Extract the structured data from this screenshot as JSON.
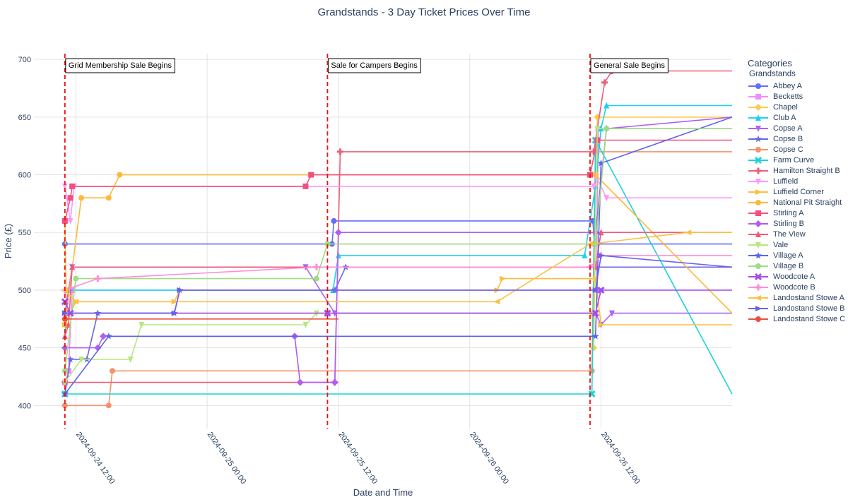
{
  "chart_data": {
    "type": "line",
    "title": "Grandstands - 3 Day Ticket Prices Over Time",
    "xlabel": "Date and Time",
    "ylabel": "Price (£)",
    "xlim": [
      "2024-09-24 08:10",
      "2024-09-26 23:59"
    ],
    "ylim": [
      380,
      705
    ],
    "yticks": [
      400,
      450,
      500,
      550,
      600,
      650,
      700
    ],
    "xticks": [
      {
        "t": "2024-09-24 12:00",
        "label": "2024-09-24 12:00"
      },
      {
        "t": "2024-09-25 00:00",
        "label": "2024-09-25 00:00"
      },
      {
        "t": "2024-09-25 12:00",
        "label": "2024-09-25 12:00"
      },
      {
        "t": "2024-09-26 00:00",
        "label": "2024-09-26 00:00"
      },
      {
        "t": "2024-09-26 12:00",
        "label": "2024-09-26 12:00"
      }
    ],
    "annotations": [
      {
        "t": "2024-09-24 11:00",
        "text": "Grid Membership Sale Begins"
      },
      {
        "t": "2024-09-25 11:00",
        "text": "Sale for Campers Begins"
      },
      {
        "t": "2024-09-26 11:00",
        "text": "General Sale Begins"
      }
    ],
    "legend": {
      "title": "Categories",
      "group": "Grandstands"
    },
    "series": [
      {
        "name": "Abbey A",
        "color": "#636efa",
        "symbol": "circle",
        "points": [
          [
            "2024-09-24 11:00",
            540
          ],
          [
            "2024-09-25 11:25",
            540
          ],
          [
            "2024-09-25 11:35",
            560
          ],
          [
            "2024-09-26 11:15",
            560
          ],
          [
            "2024-09-26 11:25",
            540
          ],
          [
            "2024-09-26 23:59",
            540
          ]
        ]
      },
      {
        "name": "Becketts",
        "color": "#ef8ef8",
        "symbol": "square",
        "points": [
          [
            "2024-09-24 11:00",
            420
          ],
          [
            "2024-09-24 11:20",
            430
          ],
          [
            "2024-09-24 11:40",
            500
          ],
          [
            "2024-09-26 11:35",
            500
          ],
          [
            "2024-09-26 11:45",
            640
          ],
          [
            "2024-09-26 23:59",
            640
          ]
        ]
      },
      {
        "name": "Chapel",
        "color": "#fecb52",
        "symbol": "diamond",
        "points": [
          [
            "2024-09-24 11:00",
            560
          ],
          [
            "2024-09-24 11:10",
            480
          ],
          [
            "2024-09-26 11:10",
            480
          ],
          [
            "2024-09-26 11:20",
            450
          ],
          [
            "2024-09-26 11:40",
            650
          ],
          [
            "2024-09-26 23:59",
            650
          ]
        ]
      },
      {
        "name": "Club A",
        "color": "#19d3f3",
        "symbol": "triangle-up",
        "points": [
          [
            "2024-09-24 11:00",
            460
          ],
          [
            "2024-09-24 11:20",
            500
          ],
          [
            "2024-09-25 11:30",
            500
          ],
          [
            "2024-09-25 12:00",
            530
          ],
          [
            "2024-09-26 10:30",
            530
          ],
          [
            "2024-09-26 11:30",
            590
          ],
          [
            "2024-09-26 12:00",
            640
          ],
          [
            "2024-09-26 12:30",
            660
          ],
          [
            "2024-09-26 23:59",
            660
          ]
        ]
      },
      {
        "name": "Copse A",
        "color": "#ab63fa",
        "symbol": "triangle-down",
        "points": [
          [
            "2024-09-24 11:00",
            480
          ],
          [
            "2024-09-24 11:40",
            520
          ],
          [
            "2024-09-25 09:00",
            520
          ],
          [
            "2024-09-25 11:40",
            480
          ],
          [
            "2024-09-26 11:30",
            480
          ],
          [
            "2024-09-26 12:00",
            470
          ],
          [
            "2024-09-26 13:00",
            480
          ],
          [
            "2024-09-26 23:59",
            480
          ]
        ]
      },
      {
        "name": "Copse B",
        "color": "#6a67e0",
        "symbol": "star",
        "points": [
          [
            "2024-09-24 11:00",
            410
          ],
          [
            "2024-09-24 11:30",
            440
          ],
          [
            "2024-09-24 13:00",
            440
          ],
          [
            "2024-09-24 14:00",
            480
          ],
          [
            "2024-09-24 21:00",
            480
          ],
          [
            "2024-09-24 21:30",
            500
          ],
          [
            "2024-09-25 11:40",
            500
          ],
          [
            "2024-09-25 12:40",
            520
          ],
          [
            "2024-09-26 23:59",
            520
          ]
        ]
      },
      {
        "name": "Copse C",
        "color": "#f2936b",
        "symbol": "circle",
        "points": [
          [
            "2024-09-24 11:00",
            400
          ],
          [
            "2024-09-24 15:00",
            400
          ],
          [
            "2024-09-24 15:20",
            430
          ],
          [
            "2024-09-26 11:10",
            430
          ],
          [
            "2024-09-26 11:30",
            620
          ],
          [
            "2024-09-26 23:59",
            620
          ]
        ]
      },
      {
        "name": "Farm Curve",
        "color": "#1bd2d8",
        "symbol": "x",
        "points": [
          [
            "2024-09-24 11:00",
            410
          ],
          [
            "2024-09-26 11:10",
            410
          ],
          [
            "2024-09-26 11:30",
            630
          ],
          [
            "2024-09-26 23:59",
            410
          ]
        ]
      },
      {
        "name": "Hamilton Straight B",
        "color": "#ec5f7a",
        "symbol": "cross",
        "points": [
          [
            "2024-09-24 11:00",
            420
          ],
          [
            "2024-09-25 11:40",
            420
          ],
          [
            "2024-09-25 12:10",
            620
          ],
          [
            "2024-09-26 11:20",
            620
          ],
          [
            "2024-09-26 12:20",
            680
          ],
          [
            "2024-09-26 13:00",
            690
          ],
          [
            "2024-09-26 23:59",
            690
          ]
        ]
      },
      {
        "name": "Luffield",
        "color": "#ff97ff",
        "symbol": "triangle-down",
        "points": [
          [
            "2024-09-24 11:00",
            590
          ],
          [
            "2024-09-24 11:30",
            560
          ],
          [
            "2024-09-24 11:50",
            590
          ],
          [
            "2024-09-26 11:20",
            590
          ],
          [
            "2024-09-26 11:30",
            600
          ],
          [
            "2024-09-26 12:30",
            580
          ],
          [
            "2024-09-26 23:59",
            580
          ]
        ]
      },
      {
        "name": "Luffield Corner",
        "color": "#fdbe3a",
        "symbol": "triangle-right",
        "points": [
          [
            "2024-09-24 11:00",
            470
          ],
          [
            "2024-09-24 12:00",
            490
          ],
          [
            "2024-09-24 21:00",
            490
          ],
          [
            "2024-09-24 21:30",
            500
          ],
          [
            "2024-09-26 02:30",
            500
          ],
          [
            "2024-09-26 03:00",
            510
          ],
          [
            "2024-09-26 11:30",
            510
          ],
          [
            "2024-09-26 12:00",
            470
          ],
          [
            "2024-09-26 23:59",
            470
          ]
        ]
      },
      {
        "name": "National Pit Straight",
        "color": "#feb83a",
        "symbol": "circle",
        "points": [
          [
            "2024-09-24 11:00",
            470
          ],
          [
            "2024-09-24 12:30",
            580
          ],
          [
            "2024-09-24 15:00",
            580
          ],
          [
            "2024-09-24 16:00",
            600
          ],
          [
            "2024-09-26 11:00",
            600
          ],
          [
            "2024-09-26 11:30",
            600
          ],
          [
            "2024-09-26 23:59",
            480
          ]
        ]
      },
      {
        "name": "Stirling A",
        "color": "#f0507e",
        "symbol": "square",
        "points": [
          [
            "2024-09-24 11:00",
            560
          ],
          [
            "2024-09-24 11:30",
            580
          ],
          [
            "2024-09-24 11:40",
            590
          ],
          [
            "2024-09-25 09:00",
            590
          ],
          [
            "2024-09-25 09:30",
            600
          ],
          [
            "2024-09-26 11:00",
            600
          ],
          [
            "2024-09-26 11:40",
            630
          ],
          [
            "2024-09-26 23:59",
            630
          ]
        ]
      },
      {
        "name": "Stirling B",
        "color": "#b05cf5",
        "symbol": "diamond",
        "points": [
          [
            "2024-09-24 11:00",
            450
          ],
          [
            "2024-09-24 14:00",
            450
          ],
          [
            "2024-09-24 14:30",
            460
          ],
          [
            "2024-09-25 08:00",
            460
          ],
          [
            "2024-09-25 08:30",
            420
          ],
          [
            "2024-09-25 11:40",
            420
          ],
          [
            "2024-09-25 12:00",
            550
          ],
          [
            "2024-09-26 11:30",
            550
          ],
          [
            "2024-09-26 12:30",
            640
          ],
          [
            "2024-09-26 23:59",
            650
          ]
        ]
      },
      {
        "name": "The View",
        "color": "#f05a7a",
        "symbol": "triangle-up",
        "points": [
          [
            "2024-09-24 11:00",
            460
          ],
          [
            "2024-09-24 11:20",
            470
          ],
          [
            "2024-09-24 11:40",
            520
          ],
          [
            "2024-09-26 11:30",
            520
          ],
          [
            "2024-09-26 12:00",
            550
          ],
          [
            "2024-09-26 23:59",
            550
          ]
        ]
      },
      {
        "name": "Vale",
        "color": "#b6e880",
        "symbol": "triangle-down",
        "points": [
          [
            "2024-09-24 11:00",
            420
          ],
          [
            "2024-09-24 12:30",
            440
          ],
          [
            "2024-09-24 17:00",
            440
          ],
          [
            "2024-09-24 18:00",
            470
          ],
          [
            "2024-09-25 09:00",
            470
          ],
          [
            "2024-09-25 10:00",
            480
          ],
          [
            "2024-09-26 11:20",
            480
          ],
          [
            "2024-09-26 11:40",
            640
          ],
          [
            "2024-09-26 23:59",
            640
          ]
        ]
      },
      {
        "name": "Village A",
        "color": "#5d63ea",
        "symbol": "star",
        "points": [
          [
            "2024-09-24 11:00",
            410
          ],
          [
            "2024-09-24 15:00",
            460
          ],
          [
            "2024-09-26 11:30",
            460
          ],
          [
            "2024-09-26 12:00",
            610
          ],
          [
            "2024-09-26 23:59",
            650
          ]
        ]
      },
      {
        "name": "Village B",
        "color": "#9fdc82",
        "symbol": "circle",
        "points": [
          [
            "2024-09-24 11:00",
            430
          ],
          [
            "2024-09-24 12:00",
            510
          ],
          [
            "2024-09-25 10:00",
            510
          ],
          [
            "2024-09-25 11:00",
            540
          ],
          [
            "2024-09-26 11:30",
            540
          ],
          [
            "2024-09-26 12:30",
            640
          ],
          [
            "2024-09-26 23:59",
            640
          ]
        ]
      },
      {
        "name": "Woodcote A",
        "color": "#a44dec",
        "symbol": "x",
        "points": [
          [
            "2024-09-24 11:00",
            490
          ],
          [
            "2024-09-24 11:30",
            480
          ],
          [
            "2024-09-25 11:00",
            480
          ],
          [
            "2024-09-26 11:30",
            480
          ],
          [
            "2024-09-26 12:00",
            500
          ],
          [
            "2024-09-26 23:59",
            500
          ]
        ]
      },
      {
        "name": "Woodcote B",
        "color": "#ff8ed8",
        "symbol": "cross",
        "points": [
          [
            "2024-09-24 11:00",
            500
          ],
          [
            "2024-09-24 14:00",
            510
          ],
          [
            "2024-09-25 10:00",
            520
          ],
          [
            "2024-09-26 11:00",
            520
          ],
          [
            "2024-09-26 12:00",
            530
          ],
          [
            "2024-09-26 23:59",
            530
          ]
        ]
      },
      {
        "name": "Landostand Stowe A",
        "color": "#fbc046",
        "symbol": "triangle-left",
        "points": [
          [
            "2024-09-24 11:00",
            500
          ],
          [
            "2024-09-24 12:00",
            490
          ],
          [
            "2024-09-26 02:30",
            490
          ],
          [
            "2024-09-26 11:00",
            540
          ],
          [
            "2024-09-26 20:00",
            550
          ],
          [
            "2024-09-26 23:59",
            550
          ]
        ]
      },
      {
        "name": "Landostand Stowe B",
        "color": "#6860ef",
        "symbol": "triangle-right",
        "points": [
          [
            "2024-09-24 11:00",
            480
          ],
          [
            "2024-09-24 21:00",
            480
          ],
          [
            "2024-09-24 21:30",
            500
          ],
          [
            "2024-09-26 11:30",
            500
          ],
          [
            "2024-09-26 12:00",
            530
          ],
          [
            "2024-09-26 23:59",
            520
          ]
        ]
      },
      {
        "name": "Landostand Stowe C",
        "color": "#ea4f3e",
        "symbol": "circle",
        "points": [
          [
            "2024-09-24 11:00",
            475
          ],
          [
            "2024-09-25 12:00",
            475
          ]
        ]
      }
    ]
  }
}
